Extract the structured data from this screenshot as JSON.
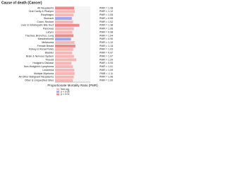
{
  "chart_data": {
    "type": "barh",
    "title": "Cause of death (Cancer)",
    "xlabel": "Proportionate Mortality Ratio (PMR)",
    "categories": [
      "All Neoplasms",
      "Oral Cavity & Pharynx",
      "Esophagus",
      "Stomach",
      "Colon, Rectum",
      "Liver & Intrahepatic Bile Duct",
      "Pancreas",
      "Larynx",
      "Trachea, Bronchus, Lung",
      "Mesothelioma",
      "Melanoma",
      "Female Breast",
      "Kidney & Renal Pelvis",
      "Bladder",
      "Brain & Nervous System",
      "Thyroid",
      "Hodgkin's Disease",
      "Non-Hodgkin's Lymphoma",
      "Leukemia",
      "Multiple Myeloma",
      "All Other Malignant Neoplasms",
      "Other & Unspecified Sites"
    ],
    "values": [
      1.08,
      1.12,
      1.05,
      0.95,
      1.02,
      1.38,
      1.06,
      0.98,
      1.04,
      0.9,
      1.1,
      1.15,
      1.03,
      0.97,
      1.07,
      1.2,
      0.93,
      1.01,
      1.09,
      1.11,
      1.06,
      1.0
    ],
    "value_labels": [
      "PMR = 1.08",
      "PMR = 1.12",
      "PMR = 1.05",
      "PMR = 0.95",
      "PMR = 1.02",
      "PMR = 1.38",
      "PMR = 1.06",
      "PMR = 0.98",
      "PMR = 1.04",
      "PMR = 0.90",
      "PMR = 1.10",
      "PMR = 1.15",
      "PMR = 1.03",
      "PMR = 0.97",
      "PMR = 1.07",
      "PMR = 1.20",
      "PMR = 0.93",
      "PMR = 1.01",
      "PMR = 1.09",
      "PMR = 1.11",
      "PMR = 1.06",
      "PMR = 1.00"
    ],
    "bar_colors": [
      "#f08a8a",
      "#f7b6b6",
      "#f7b6b6",
      "#9aa8f0",
      "#f7b6b6",
      "#f08a8a",
      "#f7b6b6",
      "#f7b6b6",
      "#f08a8a",
      "#9aa8f0",
      "#f7b6b6",
      "#f08a8a",
      "#f7b6b6",
      "#f7b6b6",
      "#f7b6b6",
      "#f7b6b6",
      "#f7b6b6",
      "#f7b6b6",
      "#f7b6b6",
      "#f7b6b6",
      "#f7b6b6",
      "#f7b6b6"
    ],
    "legend": [
      {
        "name": "Non-sig",
        "color": "#f7b6b6"
      },
      {
        "name": "p < 0.05",
        "color": "#9aa8f0"
      },
      {
        "name": "p < 0.01",
        "color": "#f08a8a"
      }
    ],
    "xlim": [
      0,
      2
    ]
  }
}
